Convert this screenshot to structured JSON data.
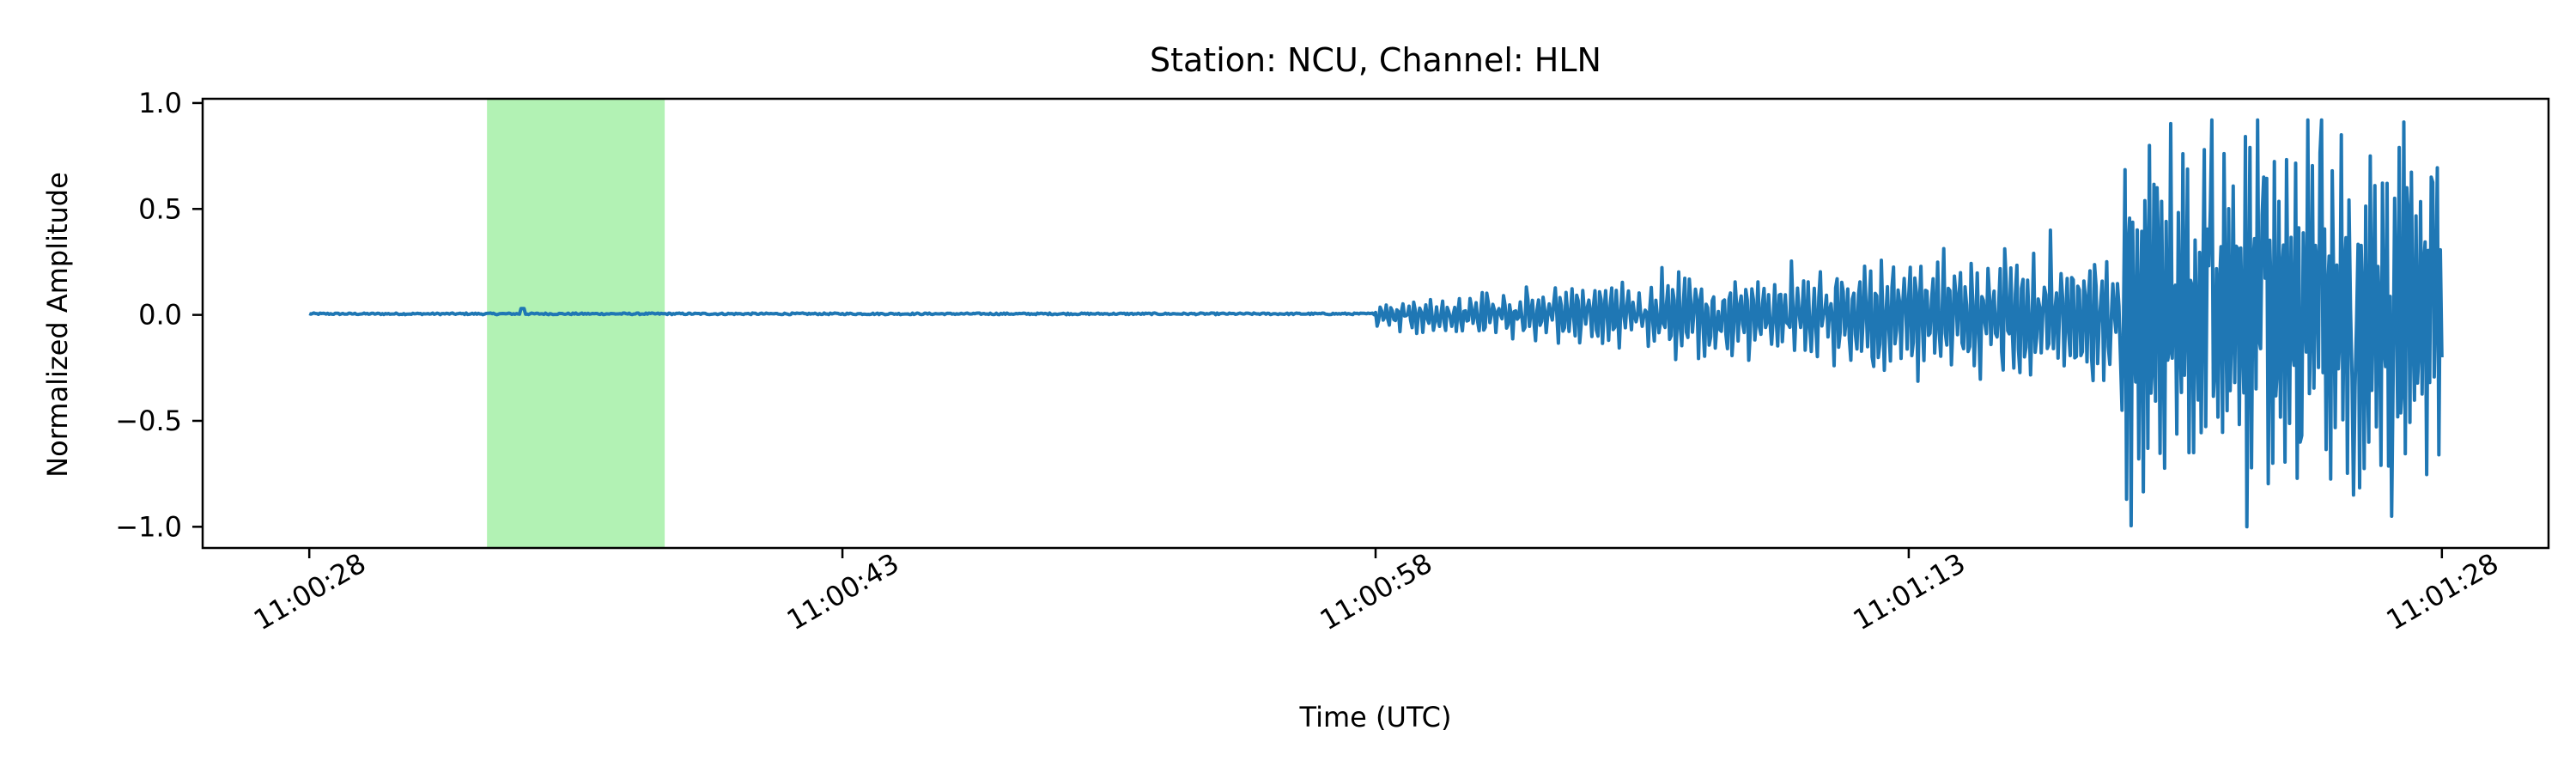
{
  "chart_data": {
    "type": "line",
    "title": "Station: NCU, Channel: HLN",
    "xlabel": "Time (UTC)",
    "ylabel": "Normalized Amplitude",
    "x_ticks": [
      "11:00:28",
      "11:00:43",
      "11:00:58",
      "11:01:13",
      "11:01:28"
    ],
    "y_ticks": [
      "1.0",
      "0.5",
      "0.0",
      "−0.5",
      "−1.0"
    ],
    "y_tick_values": [
      1.0,
      0.5,
      0.0,
      -0.5,
      -1.0
    ],
    "xlim": [
      "11:00:25",
      "11:01:31"
    ],
    "ylim": [
      -1.1,
      1.02
    ],
    "grid": false,
    "highlight_span": {
      "start": "11:00:33",
      "end": "11:00:38",
      "color": "#b2f2b4"
    },
    "series": [
      {
        "color": "#1f77b4",
        "x_start": "11:00:28",
        "x_end": "11:01:28",
        "points": [
          [
            "11:00:28",
            0.01
          ],
          [
            "11:00:34",
            0.0
          ],
          [
            "11:00:34.1",
            0.03
          ],
          [
            "11:00:34.2",
            0.0
          ],
          [
            "11:00:45",
            0.0
          ],
          [
            "11:00:57",
            0.0
          ],
          [
            "11:00:58",
            0.03
          ],
          [
            "11:01:00",
            -0.03
          ],
          [
            "11:01:03",
            0.08
          ],
          [
            "11:01:05",
            -0.1
          ],
          [
            "11:01:08",
            0.15
          ],
          [
            "11:01:10",
            -0.15
          ],
          [
            "11:01:13",
            0.15
          ],
          [
            "11:01:16",
            0.25
          ],
          [
            "11:01:17",
            -0.1
          ],
          [
            "11:01:18",
            0.2
          ],
          [
            "11:01:19",
            -0.45
          ],
          [
            "11:01:20",
            0.6
          ],
          [
            "11:01:21",
            -0.65
          ],
          [
            "11:01:21.5",
            0.5
          ],
          [
            "11:01:22.5",
            -1.0
          ],
          [
            "11:01:23",
            0.65
          ],
          [
            "11:01:24",
            -0.6
          ],
          [
            "11:01:24.6",
            0.92
          ],
          [
            "11:01:25.5",
            -0.85
          ],
          [
            "11:01:26",
            0.75
          ],
          [
            "11:01:26.6",
            -0.95
          ],
          [
            "11:01:27",
            0.6
          ],
          [
            "11:01:27.7",
            0.65
          ],
          [
            "11:01:28",
            -0.2
          ]
        ]
      }
    ]
  }
}
